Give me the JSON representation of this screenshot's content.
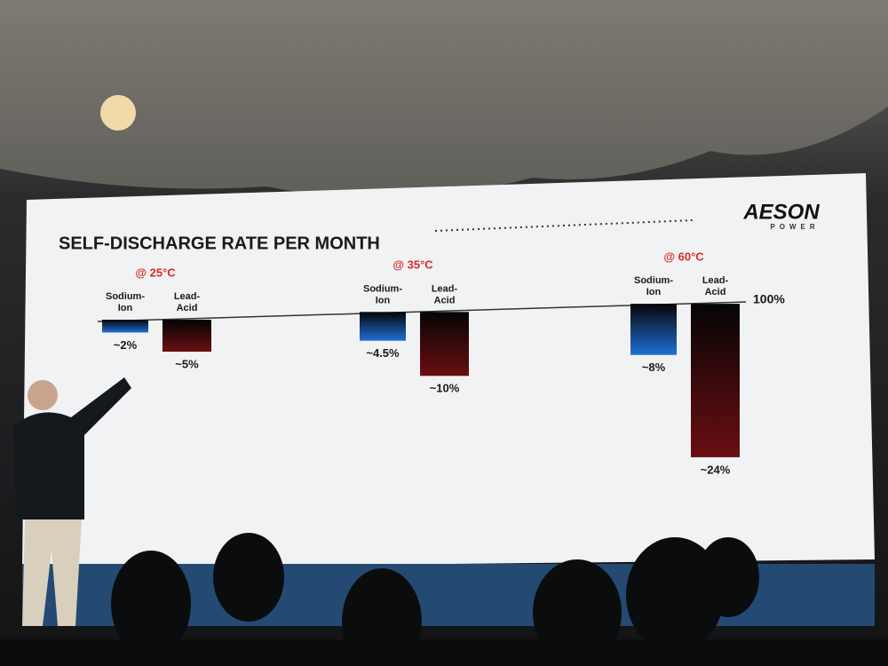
{
  "logo": {
    "name": "AESON",
    "tagline": "POWER"
  },
  "chart_data": {
    "type": "bar",
    "title": "SELF-DISCHARGE RATE PER MONTH",
    "categories": [
      "@ 25°C",
      "@ 35°C",
      "@ 60°C"
    ],
    "series": [
      {
        "name": "Sodium-Ion",
        "color": "#1f6fd6",
        "values": [
          2,
          4.5,
          8
        ],
        "value_labels": [
          "~2%",
          "~4.5%",
          "~8%"
        ]
      },
      {
        "name": "Lead-Acid",
        "color": "#6b0e12",
        "values": [
          5,
          10,
          24
        ],
        "value_labels": [
          "~5%",
          "~10%",
          "~24%"
        ]
      }
    ],
    "baseline_label": "100%",
    "ylim": [
      0,
      25
    ],
    "inverted": true
  }
}
